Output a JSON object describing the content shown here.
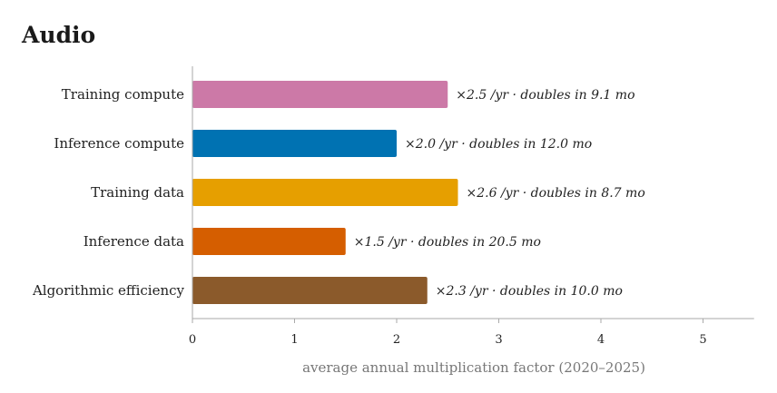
{
  "chart_data": {
    "type": "bar",
    "orientation": "horizontal",
    "title": "Audio",
    "xlabel": "average annual multiplication factor (2020–2025)",
    "ylabel": "",
    "xlim": [
      0,
      5.5
    ],
    "xticks": [
      0,
      1,
      2,
      3,
      4,
      5
    ],
    "grid": false,
    "legend": "none",
    "categories": [
      "Training compute",
      "Inference compute",
      "Training data",
      "Inference data",
      "Algorithmic efficiency"
    ],
    "values": [
      2.5,
      2.0,
      2.6,
      1.5,
      2.3
    ],
    "colors": [
      "#cc79a7",
      "#0072b2",
      "#e69f00",
      "#d55e00",
      "#8b5a2b"
    ],
    "annotations": [
      "×2.5 /yr · doubles in 9.1 mo",
      "×2.0 /yr · doubles in 12.0 mo",
      "×2.6 /yr · doubles in 8.7 mo",
      "×1.5 /yr · doubles in 20.5 mo",
      "×2.3 /yr · doubles in 10.0 mo"
    ]
  }
}
